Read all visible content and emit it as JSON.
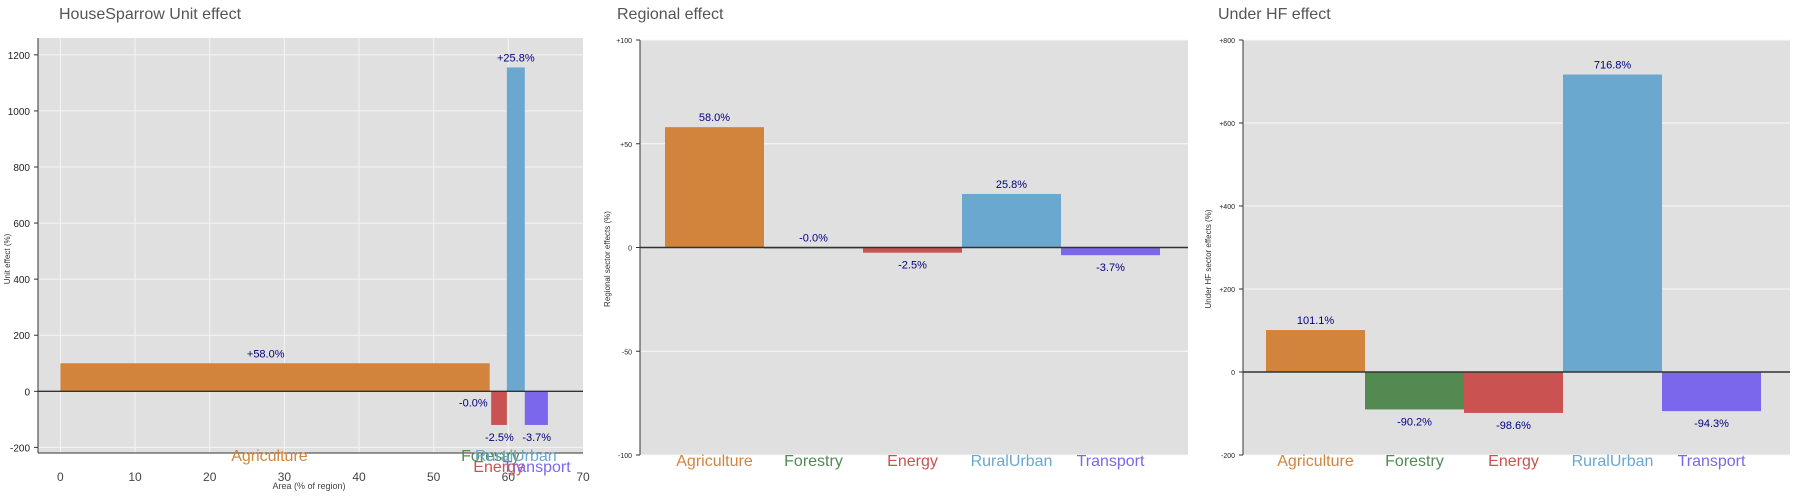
{
  "chart_data": [
    {
      "type": "bar",
      "title": "HouseSparrow Unit effect",
      "xlabel": "Area (% of region)",
      "ylabel": "Unit effect (%)",
      "xlim": [
        -3,
        70
      ],
      "ylim": [
        -220,
        1260
      ],
      "x_ticks": [
        0,
        10,
        20,
        30,
        40,
        50,
        60,
        70
      ],
      "y_ticks": [
        -200,
        0,
        200,
        400,
        600,
        800,
        1000,
        1200
      ],
      "grid": true,
      "categories": [
        "Agriculture",
        "Forestry",
        "Energy",
        "RuralUrban",
        "Transport"
      ],
      "bars": [
        {
          "category": "Agriculture",
          "x_start": 0,
          "x_end": 57.5,
          "value": 100,
          "label": "+58.0%"
        },
        {
          "category": "Forestry",
          "x_start": 57.5,
          "x_end": 57.7,
          "value": -1,
          "label": "-0.0%"
        },
        {
          "category": "Energy",
          "x_start": 57.7,
          "x_end": 59.8,
          "value": -120,
          "label": "-2.5%"
        },
        {
          "category": "RuralUrban",
          "x_start": 59.8,
          "x_end": 62.2,
          "value": 1155,
          "label": "+25.8%"
        },
        {
          "category": "Transport",
          "x_start": 62.2,
          "x_end": 65.3,
          "value": -120,
          "label": "-3.7%"
        }
      ],
      "category_label_x": [
        28,
        57.6,
        58.7,
        61,
        63.8
      ]
    },
    {
      "type": "bar",
      "title": "Regional effect",
      "ylabel": "Regional sector effects (%)",
      "ylim": [
        -100,
        100
      ],
      "y_ticks": [
        -100,
        -50,
        0,
        50,
        100
      ],
      "y_tick_labels": [
        "-100",
        "-50",
        "0",
        "+50",
        "+100"
      ],
      "grid": true,
      "categories": [
        "Agriculture",
        "Forestry",
        "Energy",
        "RuralUrban",
        "Transport"
      ],
      "values": [
        58.0,
        -0.0,
        -2.5,
        25.8,
        -3.7
      ],
      "labels": [
        "58.0%",
        "-0.0%",
        "-2.5%",
        "25.8%",
        "-3.7%"
      ]
    },
    {
      "type": "bar",
      "title": "Under HF effect",
      "ylabel": "Under HF sector effects (%)",
      "ylim": [
        -200,
        800
      ],
      "y_ticks": [
        -200,
        0,
        200,
        400,
        600,
        800
      ],
      "y_tick_labels": [
        "-200",
        "0",
        "+200",
        "+400",
        "+600",
        "+800"
      ],
      "grid": true,
      "categories": [
        "Agriculture",
        "Forestry",
        "Energy",
        "RuralUrban",
        "Transport"
      ],
      "values": [
        101.1,
        -90.2,
        -98.6,
        716.8,
        -94.3
      ],
      "labels": [
        "101.1%",
        "-90.2%",
        "-98.6%",
        "716.8%",
        "-94.3%"
      ]
    }
  ],
  "colors": {
    "Agriculture": "#d2843c",
    "Forestry": "#528a52",
    "Energy": "#ca5250",
    "RuralUrban": "#6aa8d0",
    "Transport": "#7b67ec",
    "plot_bg": "#e0e0e0",
    "label": "#000080"
  }
}
